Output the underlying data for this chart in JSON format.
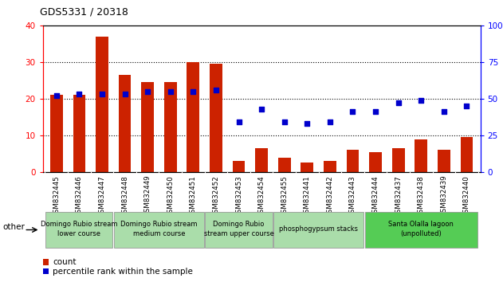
{
  "title": "GDS5331 / 20318",
  "samples": [
    "GSM832445",
    "GSM832446",
    "GSM832447",
    "GSM832448",
    "GSM832449",
    "GSM832450",
    "GSM832451",
    "GSM832452",
    "GSM832453",
    "GSM832454",
    "GSM832455",
    "GSM832441",
    "GSM832442",
    "GSM832443",
    "GSM832444",
    "GSM832437",
    "GSM832438",
    "GSM832439",
    "GSM832440"
  ],
  "counts": [
    21,
    21,
    37,
    26.5,
    24.5,
    24.5,
    30,
    29.5,
    3,
    6.5,
    4,
    2.5,
    3,
    6,
    5.5,
    6.5,
    9,
    6,
    9.5
  ],
  "percentile_ranks": [
    52,
    53,
    53,
    53,
    55,
    55,
    55,
    56,
    34,
    43,
    34,
    33,
    34,
    41,
    41,
    47,
    49,
    41,
    45
  ],
  "ylim_left": [
    0,
    40
  ],
  "ylim_right": [
    0,
    100
  ],
  "yticks_left": [
    0,
    10,
    20,
    30,
    40
  ],
  "yticks_right": [
    0,
    25,
    50,
    75,
    100
  ],
  "bar_color": "#cc2200",
  "dot_color": "#0000cc",
  "background_color": "#ffffff",
  "plot_bg": "#ffffff",
  "groups": [
    {
      "label": "Domingo Rubio stream\nlower course",
      "start": 0,
      "end": 2,
      "color": "#aaddaa"
    },
    {
      "label": "Domingo Rubio stream\nmedium course",
      "start": 3,
      "end": 6,
      "color": "#aaddaa"
    },
    {
      "label": "Domingo Rubio\nstream upper course",
      "start": 7,
      "end": 9,
      "color": "#aaddaa"
    },
    {
      "label": "phosphogypsum stacks",
      "start": 10,
      "end": 13,
      "color": "#aaddaa"
    },
    {
      "label": "Santa Olalla lagoon\n(unpolluted)",
      "start": 14,
      "end": 18,
      "color": "#55cc55"
    }
  ],
  "legend_count_label": "count",
  "legend_pct_label": "percentile rank within the sample",
  "other_label": "other"
}
